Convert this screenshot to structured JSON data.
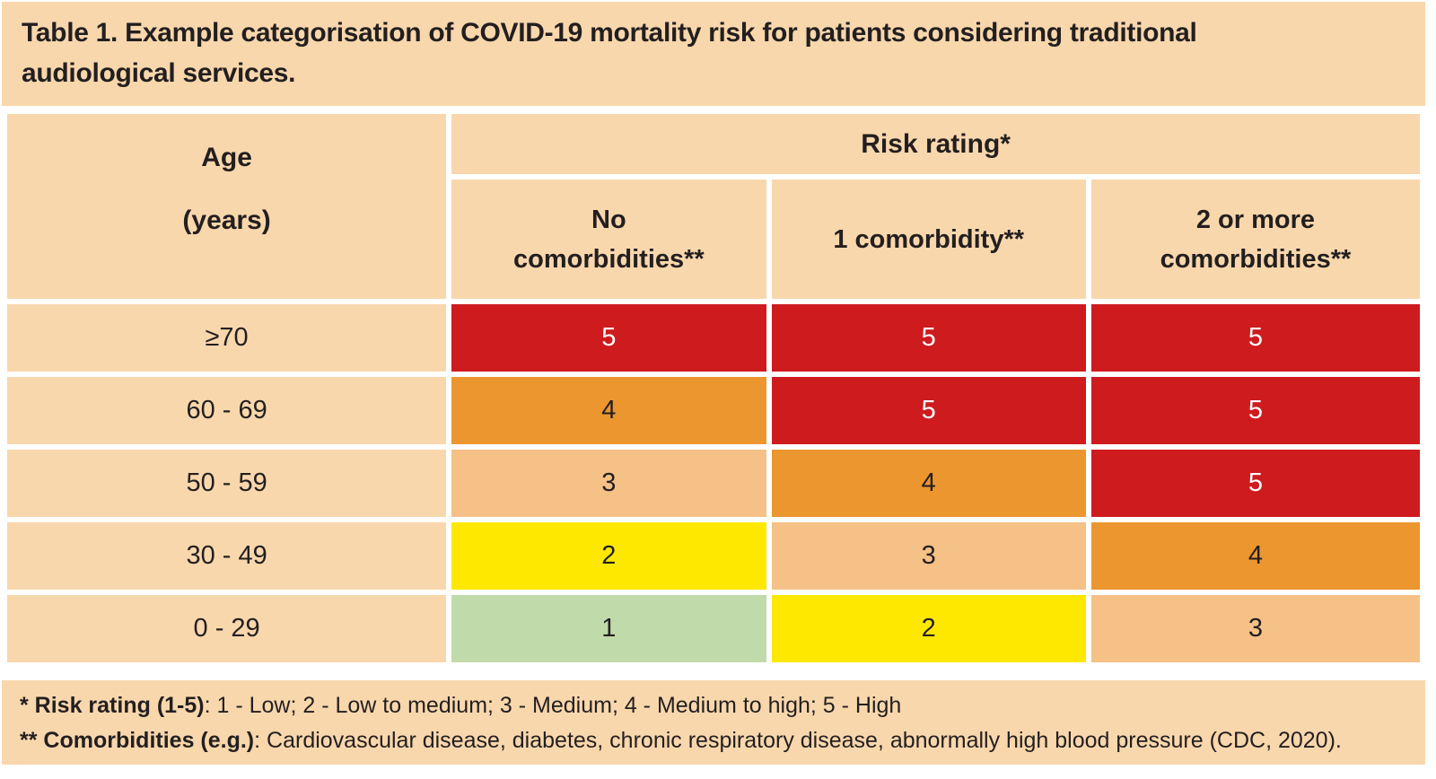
{
  "title": "Table 1. Example categorisation of COVID-19 mortality risk for patients considering traditional audiological services.",
  "table": {
    "age_header": {
      "label": "Age",
      "unit": "(years)"
    },
    "risk_rating_header": "Risk rating*",
    "column_headers": [
      "No comorbidities**",
      "1 comorbidity**",
      "2 or more comorbidities**"
    ],
    "rows": [
      {
        "age": "≥70",
        "cells": [
          "5",
          "5",
          "5"
        ]
      },
      {
        "age": "60 - 69",
        "cells": [
          "4",
          "5",
          "5"
        ]
      },
      {
        "age": "50 - 59",
        "cells": [
          "3",
          "4",
          "5"
        ]
      },
      {
        "age": "30 - 49",
        "cells": [
          "2",
          "3",
          "4"
        ]
      },
      {
        "age": "0 - 29",
        "cells": [
          "1",
          "2",
          "3"
        ]
      }
    ]
  },
  "risk_levels": {
    "1": {
      "bg": "#c0daa9",
      "fg": "#231f20"
    },
    "2": {
      "bg": "#fee800",
      "fg": "#231f20"
    },
    "3": {
      "bg": "#f5c186",
      "fg": "#231f20"
    },
    "4": {
      "bg": "#ec9630",
      "fg": "#231f20"
    },
    "5": {
      "bg": "#ce1b1e",
      "fg": "#ffffff"
    }
  },
  "footnotes": [
    {
      "lead": "* Risk rating (1-5)",
      "rest": ": 1 - Low; 2 - Low to medium; 3 - Medium; 4 - Medium to high; 5 - High"
    },
    {
      "lead": "** Comorbidities (e.g.)",
      "rest": ": Cardiovascular disease, diabetes, chronic respiratory disease, abnormally high blood pressure (CDC, 2020)."
    }
  ],
  "colors": {
    "panel_bg": "#f9d7ac",
    "page_bg": "#ffffff",
    "text": "#231f20"
  }
}
